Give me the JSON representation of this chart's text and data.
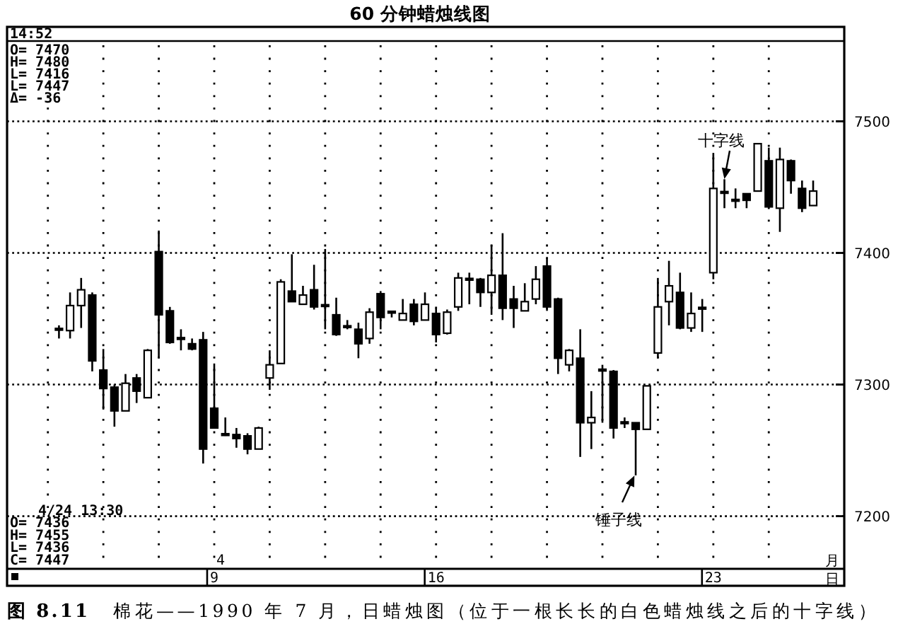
{
  "chart_data": {
    "type": "candlestick",
    "title": "60 分钟蜡烛线图",
    "color": "#000000",
    "categories": [
      null,
      null,
      null,
      null,
      null,
      null,
      null,
      null,
      null,
      null,
      null,
      null,
      null,
      null,
      "9",
      null,
      null,
      null,
      null,
      null,
      null,
      null,
      null,
      null,
      null,
      null,
      null,
      null,
      null,
      null,
      null,
      null,
      null,
      null,
      "16",
      null,
      null,
      null,
      null,
      null,
      null,
      null,
      null,
      null,
      null,
      null,
      null,
      null,
      null,
      null,
      null,
      null,
      null,
      null,
      null,
      null,
      null,
      null,
      null,
      "23",
      null,
      null,
      null,
      null,
      null,
      null,
      null,
      null,
      null
    ],
    "ohlc": [
      [
        7342,
        7345,
        7335,
        7342
      ],
      [
        7341,
        7370,
        7335,
        7360
      ],
      [
        7360,
        7381,
        7343,
        7372
      ],
      [
        7368,
        7370,
        7310,
        7318
      ],
      [
        7311,
        7327,
        7281,
        7297
      ],
      [
        7298,
        7300,
        7268,
        7280
      ],
      [
        7280,
        7308,
        7280,
        7301
      ],
      [
        7305,
        7308,
        7286,
        7295
      ],
      [
        7290,
        7327,
        7290,
        7326
      ],
      [
        7401,
        7417,
        7320,
        7353
      ],
      [
        7356,
        7359,
        7331,
        7332
      ],
      [
        7335,
        7342,
        7326,
        7335
      ],
      [
        7331,
        7335,
        7326,
        7327
      ],
      [
        7334,
        7340,
        7240,
        7251
      ],
      [
        7282,
        7316,
        7267,
        7267
      ],
      [
        7262,
        7275,
        7261,
        7262
      ],
      [
        7262,
        7267,
        7252,
        7259
      ],
      [
        7261,
        7263,
        7247,
        7251
      ],
      [
        7251,
        7268,
        7251,
        7267
      ],
      [
        7305,
        7326,
        7296,
        7315
      ],
      [
        7316,
        7380,
        7316,
        7378
      ],
      [
        7371,
        7399,
        7363,
        7363
      ],
      [
        7361,
        7375,
        7361,
        7368
      ],
      [
        7372,
        7391,
        7357,
        7359
      ],
      [
        7360,
        7403,
        7342,
        7360
      ],
      [
        7353,
        7366,
        7337,
        7338
      ],
      [
        7344,
        7349,
        7342,
        7344
      ],
      [
        7342,
        7347,
        7320,
        7331
      ],
      [
        7335,
        7358,
        7331,
        7355
      ],
      [
        7369,
        7371,
        7342,
        7351
      ],
      [
        7355,
        7355,
        7351,
        7355
      ],
      [
        7349,
        7365,
        7349,
        7354
      ],
      [
        7361,
        7365,
        7345,
        7348
      ],
      [
        7349,
        7370,
        7349,
        7361
      ],
      [
        7354,
        7358,
        7332,
        7338
      ],
      [
        7339,
        7357,
        7338,
        7355
      ],
      [
        7359,
        7385,
        7356,
        7381
      ],
      [
        7380,
        7385,
        7361,
        7380
      ],
      [
        7380,
        7381,
        7359,
        7370
      ],
      [
        7370,
        7406,
        7353,
        7383
      ],
      [
        7383,
        7415,
        7349,
        7358
      ],
      [
        7365,
        7375,
        7343,
        7358
      ],
      [
        7356,
        7377,
        7356,
        7363
      ],
      [
        7365,
        7390,
        7361,
        7380
      ],
      [
        7390,
        7396,
        7356,
        7359
      ],
      [
        7365,
        7366,
        7308,
        7320
      ],
      [
        7315,
        7327,
        7310,
        7326
      ],
      [
        7320,
        7342,
        7245,
        7271
      ],
      [
        7271,
        7295,
        7251,
        7275
      ],
      [
        7311,
        7315,
        7271,
        7311
      ],
      [
        7310,
        7311,
        7259,
        7267
      ],
      [
        7271,
        7275,
        7267,
        7271
      ],
      [
        7271,
        7271,
        7231,
        7266
      ],
      [
        7266,
        7299,
        7266,
        7299
      ],
      [
        7324,
        7381,
        7320,
        7359
      ],
      [
        7363,
        7394,
        7345,
        7375
      ],
      [
        7370,
        7385,
        7342,
        7343
      ],
      [
        7343,
        7370,
        7340,
        7354
      ],
      [
        7358,
        7365,
        7340,
        7358
      ],
      [
        7385,
        7476,
        7380,
        7449
      ],
      [
        7446,
        7456,
        7434,
        7446
      ],
      [
        7440,
        7449,
        7434,
        7440
      ],
      [
        7445,
        7445,
        7434,
        7440
      ],
      [
        7447,
        7483,
        7447,
        7483
      ],
      [
        7470,
        7480,
        7435,
        7435
      ],
      [
        7434,
        7480,
        7416,
        7471
      ],
      [
        7470,
        7471,
        7445,
        7455
      ],
      [
        7449,
        7455,
        7431,
        7434
      ],
      [
        7436,
        7455,
        7436,
        7447
      ]
    ],
    "ylim": [
      7160,
      7561
    ],
    "yticks": [
      7200,
      7300,
      7400,
      7500
    ],
    "grid": true,
    "annotations": [
      "14:52",
      "O= 7470\nH= 7480\nL= 7416\nL= 7447\nΔ= -36",
      "4/24 13:30\nO= 7436\nH= 7455\nL= 7436\nC= 7447",
      "4",
      "月",
      "日",
      "十字线",
      "锤子线",
      "图 8.11",
      "棉花——1990 年 7 月，日蜡烛图（位于一根长长的白色蜡烛线之后的十字线）"
    ]
  }
}
